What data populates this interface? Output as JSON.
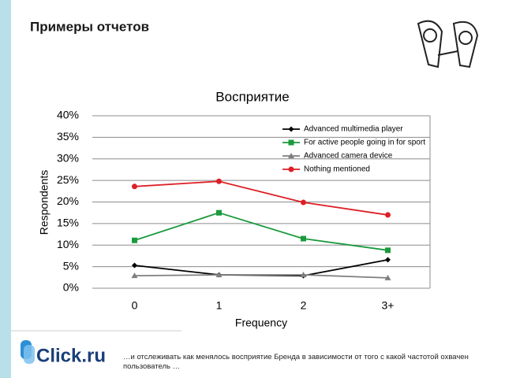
{
  "header": {
    "title": "Примеры отчетов"
  },
  "chart_data": {
    "type": "line",
    "title": "Восприятие",
    "x_label": "Frequency",
    "y_label": "Respondents",
    "categories": [
      "0",
      "1",
      "2",
      "3+"
    ],
    "series": [
      {
        "name": "Advanced multimedia player",
        "color": "#000000",
        "marker": "diamond",
        "values": [
          5.3,
          3.1,
          2.9,
          6.6
        ]
      },
      {
        "name": "For active people going in for sport",
        "color": "#1a9a3c",
        "marker": "square",
        "values": [
          11.1,
          17.5,
          11.5,
          8.8
        ]
      },
      {
        "name": "Advanced camera device",
        "color": "#7f7f7f",
        "marker": "triangle",
        "values": [
          2.9,
          3.1,
          3.1,
          2.4
        ]
      },
      {
        "name": "Nothing mentioned",
        "color": "#dd1f26",
        "marker": "circle",
        "values": [
          23.6,
          24.8,
          19.9,
          17.0
        ]
      }
    ],
    "ylim": [
      0,
      40
    ],
    "yticks": [
      {
        "value": 0,
        "label": "0%"
      },
      {
        "value": 5,
        "label": "5%"
      },
      {
        "value": 10,
        "label": "10%"
      },
      {
        "value": 15,
        "label": "15%"
      },
      {
        "value": 20,
        "label": "20%"
      },
      {
        "value": 25,
        "label": "25%"
      },
      {
        "value": 30,
        "label": "30%"
      },
      {
        "value": 35,
        "label": "35%"
      },
      {
        "value": 40,
        "label": "40%"
      }
    ],
    "grid": true,
    "legend": "top-right"
  },
  "footer": {
    "logo": "Click.ru",
    "caption": "…и отслеживать как менялось восприятие Бренда в зависимости от того с какой частотой охвачен пользователь …"
  }
}
